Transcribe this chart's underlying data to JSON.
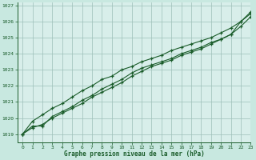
{
  "title": "Graphe pression niveau de la mer (hPa)",
  "bg_color": "#c8e8e0",
  "plot_bg": "#d8eeea",
  "grid_color": "#9dbfb8",
  "line_color": "#1a5c2a",
  "xlim": [
    -0.5,
    23
  ],
  "ylim": [
    1018.5,
    1027.2
  ],
  "xticks": [
    0,
    1,
    2,
    3,
    4,
    5,
    6,
    7,
    8,
    9,
    10,
    11,
    12,
    13,
    14,
    15,
    16,
    17,
    18,
    19,
    20,
    21,
    22,
    23
  ],
  "yticks": [
    1019,
    1020,
    1021,
    1022,
    1023,
    1024,
    1025,
    1026,
    1027
  ],
  "series1_x": [
    0,
    1,
    2,
    3,
    4,
    5,
    6,
    7,
    8,
    9,
    10,
    11,
    12,
    13,
    14,
    15,
    16,
    17,
    18,
    19,
    20,
    21,
    22,
    23
  ],
  "series1_y": [
    1019.0,
    1019.4,
    1019.6,
    1020.0,
    1020.3,
    1020.6,
    1020.9,
    1021.3,
    1021.6,
    1021.9,
    1022.2,
    1022.6,
    1022.9,
    1023.2,
    1023.4,
    1023.6,
    1023.9,
    1024.1,
    1024.3,
    1024.6,
    1024.9,
    1025.2,
    1026.0,
    1026.5
  ],
  "series2_x": [
    0,
    1,
    2,
    3,
    4,
    5,
    6,
    7,
    8,
    9,
    10,
    11,
    12,
    13,
    14,
    15,
    16,
    17,
    18,
    19,
    20,
    21,
    22,
    23
  ],
  "series2_y": [
    1019.0,
    1019.5,
    1019.5,
    1020.1,
    1020.4,
    1020.7,
    1021.1,
    1021.4,
    1021.8,
    1022.1,
    1022.4,
    1022.8,
    1023.1,
    1023.3,
    1023.5,
    1023.7,
    1024.0,
    1024.2,
    1024.4,
    1024.7,
    1024.9,
    1025.2,
    1025.7,
    1026.3
  ],
  "series3_x": [
    0,
    1,
    2,
    3,
    4,
    5,
    6,
    7,
    8,
    9,
    10,
    11,
    12,
    13,
    14,
    15,
    16,
    17,
    18,
    19,
    20,
    21,
    22,
    23
  ],
  "series3_y": [
    1019.0,
    1019.8,
    1020.2,
    1020.6,
    1020.9,
    1021.3,
    1021.7,
    1022.0,
    1022.4,
    1022.6,
    1023.0,
    1023.2,
    1023.5,
    1023.7,
    1023.9,
    1024.2,
    1024.4,
    1024.6,
    1024.8,
    1025.0,
    1025.3,
    1025.6,
    1026.0,
    1026.6
  ]
}
